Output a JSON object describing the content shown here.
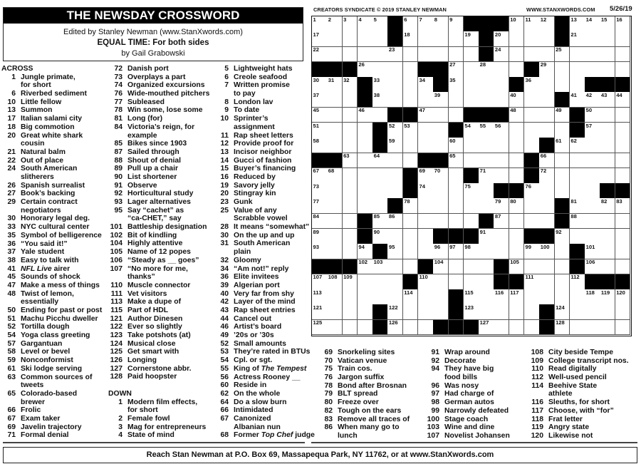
{
  "header": {
    "title": "THE NEWSDAY CROSSWORD",
    "editor": "Edited by Stanley Newman (www.StanXwords.com)",
    "puzzle_title": "EQUAL TIME: For both sides",
    "author": "by Gail Grabowski"
  },
  "top_bar": {
    "copyright": "CREATORS SYNDICATE © 2019 STANLEY NEWMAN",
    "website": "WWW.STANXWORDS.COM",
    "date": "5/26/19"
  },
  "grid": [
    ".....#....###...#....",
    ".....#.....#....#....",
    "...........#.........",
    "###....##.....#......",
    "...#....#....#....###",
    "...#............#....",
    ".....##...###....#...",
    "....#....#.......#...",
    "....#..........#.....",
    "##.....##.....#......",
    "......#...#...#......",
    "......#.....##.....##",
    ".....#..........#....",
    "...#.......#....#....",
    "...#....###...##.....",
    "....#............#...",
    "###....#....#....#...",
    "......#.....##....###",
    ".........#...........",
    "....#....#.....#.....",
    "....#...###....#....."
  ],
  "clues": {
    "across_heading": "ACROSS",
    "down_heading": "DOWN",
    "across": [
      {
        "n": "1",
        "lines": [
          "Jungle primate,",
          "for short"
        ]
      },
      {
        "n": "6",
        "lines": [
          "Riverbed sediment"
        ]
      },
      {
        "n": "10",
        "lines": [
          "Little fellow"
        ]
      },
      {
        "n": "13",
        "lines": [
          "Summon"
        ]
      },
      {
        "n": "17",
        "lines": [
          "Italian salami city"
        ]
      },
      {
        "n": "18",
        "lines": [
          "Big commotion"
        ]
      },
      {
        "n": "20",
        "lines": [
          "Great white shark",
          "cousin"
        ]
      },
      {
        "n": "21",
        "lines": [
          "Natural balm"
        ]
      },
      {
        "n": "22",
        "lines": [
          "Out of place"
        ]
      },
      {
        "n": "24",
        "lines": [
          "South American",
          "slitherers"
        ]
      },
      {
        "n": "26",
        "lines": [
          "Spanish surrealist"
        ]
      },
      {
        "n": "27",
        "lines": [
          "Book’s backing"
        ]
      },
      {
        "n": "29",
        "lines": [
          "Certain contract",
          "negotiators"
        ]
      },
      {
        "n": "30",
        "lines": [
          "Honorary legal deg."
        ]
      },
      {
        "n": "33",
        "lines": [
          "NYC cultural center"
        ]
      },
      {
        "n": "35",
        "lines": [
          "Symbol of belligerence"
        ]
      },
      {
        "n": "36",
        "lines": [
          "“You said it!”"
        ]
      },
      {
        "n": "37",
        "lines": [
          "Yale student"
        ]
      },
      {
        "n": "38",
        "lines": [
          "Easy to talk with"
        ]
      },
      {
        "n": "41",
        "lines": [
          "NFL Live airer"
        ],
        "italic": "NFL Live"
      },
      {
        "n": "45",
        "lines": [
          "Sounds of shock"
        ]
      },
      {
        "n": "47",
        "lines": [
          "Make a mess of things"
        ]
      },
      {
        "n": "48",
        "lines": [
          "Twist of lemon,",
          "essentially"
        ]
      },
      {
        "n": "50",
        "lines": [
          "Ending for past or post"
        ]
      },
      {
        "n": "51",
        "lines": [
          "Machu Picchu dweller"
        ]
      },
      {
        "n": "52",
        "lines": [
          "Tortilla dough"
        ]
      },
      {
        "n": "54",
        "lines": [
          "Yoga class greeting"
        ]
      },
      {
        "n": "57",
        "lines": [
          "Gargantuan"
        ]
      },
      {
        "n": "58",
        "lines": [
          "Level or bevel"
        ]
      },
      {
        "n": "59",
        "lines": [
          "Nonconformist"
        ]
      },
      {
        "n": "61",
        "lines": [
          "Ski lodge serving"
        ]
      },
      {
        "n": "63",
        "lines": [
          "Common sources of",
          "tweets"
        ]
      },
      {
        "n": "65",
        "lines": [
          "Colorado-based",
          "brewer"
        ]
      },
      {
        "n": "66",
        "lines": [
          "Frolic"
        ]
      },
      {
        "n": "67",
        "lines": [
          "Exam taker"
        ]
      },
      {
        "n": "69",
        "lines": [
          "Javelin trajectory"
        ]
      },
      {
        "n": "71",
        "lines": [
          "Formal denial"
        ]
      },
      {
        "n": "72",
        "lines": [
          "Danish port"
        ]
      },
      {
        "n": "73",
        "lines": [
          "Overplays a part"
        ]
      },
      {
        "n": "74",
        "lines": [
          "Organized excursions"
        ]
      },
      {
        "n": "76",
        "lines": [
          "Wide-mouthed pitchers"
        ]
      },
      {
        "n": "77",
        "lines": [
          "Subleased"
        ]
      },
      {
        "n": "78",
        "lines": [
          "Win some, lose some"
        ]
      },
      {
        "n": "81",
        "lines": [
          "Long (for)"
        ]
      },
      {
        "n": "84",
        "lines": [
          "Victoria’s reign, for",
          "example"
        ]
      },
      {
        "n": "85",
        "lines": [
          "Bikes since 1903"
        ]
      },
      {
        "n": "87",
        "lines": [
          "Sailed through"
        ]
      },
      {
        "n": "88",
        "lines": [
          "Shout of denial"
        ]
      },
      {
        "n": "89",
        "lines": [
          "Pull up a chair"
        ]
      },
      {
        "n": "90",
        "lines": [
          "List shortener"
        ]
      },
      {
        "n": "91",
        "lines": [
          "Observe"
        ]
      },
      {
        "n": "92",
        "lines": [
          "Horticultural study"
        ]
      },
      {
        "n": "93",
        "lines": [
          "Lager alternatives"
        ]
      },
      {
        "n": "95",
        "lines": [
          "Say “cachet” as",
          "“ca-CHET,” say"
        ]
      },
      {
        "n": "101",
        "lines": [
          "Battleship designation"
        ]
      },
      {
        "n": "102",
        "lines": [
          "Bit of kindling"
        ]
      },
      {
        "n": "104",
        "lines": [
          "Highly attentive"
        ]
      },
      {
        "n": "105",
        "lines": [
          "Name of 12 popes"
        ]
      },
      {
        "n": "106",
        "lines": [
          "“Steady as __ goes”"
        ]
      },
      {
        "n": "107",
        "lines": [
          "“No more for me,",
          "thanks”"
        ]
      },
      {
        "n": "110",
        "lines": [
          "Muscle connector"
        ]
      },
      {
        "n": "111",
        "lines": [
          "Vet visitors"
        ]
      },
      {
        "n": "113",
        "lines": [
          "Make a dupe of"
        ]
      },
      {
        "n": "115",
        "lines": [
          "Part of HDL"
        ]
      },
      {
        "n": "121",
        "lines": [
          "Author Dinesen"
        ]
      },
      {
        "n": "122",
        "lines": [
          "Ever so slightly"
        ]
      },
      {
        "n": "123",
        "lines": [
          "Take potshots (at)"
        ]
      },
      {
        "n": "124",
        "lines": [
          "Musical close"
        ]
      },
      {
        "n": "125",
        "lines": [
          "Get smart with"
        ]
      },
      {
        "n": "126",
        "lines": [
          "Longing"
        ]
      },
      {
        "n": "127",
        "lines": [
          "Cornerstone abbr."
        ]
      },
      {
        "n": "128",
        "lines": [
          "Paid hoopster"
        ]
      }
    ],
    "down": [
      {
        "n": "1",
        "lines": [
          "Modern film effects,",
          "for short"
        ]
      },
      {
        "n": "2",
        "lines": [
          "Female fowl"
        ]
      },
      {
        "n": "3",
        "lines": [
          "Mag for entrepreneurs"
        ]
      },
      {
        "n": "4",
        "lines": [
          "State of mind"
        ]
      },
      {
        "n": "5",
        "lines": [
          "Lightweight hats"
        ]
      },
      {
        "n": "6",
        "lines": [
          "Creole seafood"
        ]
      },
      {
        "n": "7",
        "lines": [
          "Written promise",
          "to pay"
        ]
      },
      {
        "n": "8",
        "lines": [
          "London lav"
        ]
      },
      {
        "n": "9",
        "lines": [
          "To date"
        ]
      },
      {
        "n": "10",
        "lines": [
          "Sprinter’s",
          "assignment"
        ]
      },
      {
        "n": "11",
        "lines": [
          "Rap sheet letters"
        ]
      },
      {
        "n": "12",
        "lines": [
          "Provide proof for"
        ]
      },
      {
        "n": "13",
        "lines": [
          "Incisor neighbor"
        ]
      },
      {
        "n": "14",
        "lines": [
          "Gucci of fashion"
        ]
      },
      {
        "n": "15",
        "lines": [
          "Buyer’s financing"
        ]
      },
      {
        "n": "16",
        "lines": [
          "Reduced by"
        ]
      },
      {
        "n": "19",
        "lines": [
          "Savory jelly"
        ]
      },
      {
        "n": "20",
        "lines": [
          "Stingray kin"
        ]
      },
      {
        "n": "23",
        "lines": [
          "Gunk"
        ]
      },
      {
        "n": "25",
        "lines": [
          "Value of any",
          "Scrabble vowel"
        ]
      },
      {
        "n": "28",
        "lines": [
          "It means “somewhat”"
        ]
      },
      {
        "n": "30",
        "lines": [
          "On the up and up"
        ]
      },
      {
        "n": "31",
        "lines": [
          "South American",
          "plain"
        ]
      },
      {
        "n": "32",
        "lines": [
          "Gloomy"
        ]
      },
      {
        "n": "34",
        "lines": [
          "“Am not!” reply"
        ]
      },
      {
        "n": "36",
        "lines": [
          "Elite invitees"
        ]
      },
      {
        "n": "39",
        "lines": [
          "Algerian port"
        ]
      },
      {
        "n": "40",
        "lines": [
          "Very far from shy"
        ]
      },
      {
        "n": "42",
        "lines": [
          "Layer of the mind"
        ]
      },
      {
        "n": "43",
        "lines": [
          "Rap sheet entries"
        ]
      },
      {
        "n": "44",
        "lines": [
          "Cancel out"
        ]
      },
      {
        "n": "46",
        "lines": [
          "Artist’s board"
        ]
      },
      {
        "n": "49",
        "lines": [
          "’20s or ’30s"
        ]
      },
      {
        "n": "52",
        "lines": [
          "Small amounts"
        ]
      },
      {
        "n": "53",
        "lines": [
          "They’re rated in BTUs"
        ]
      },
      {
        "n": "54",
        "lines": [
          "Cpl. or sgt."
        ]
      },
      {
        "n": "55",
        "lines": [
          "King of The Tempest"
        ],
        "italic": "The Tempest"
      },
      {
        "n": "56",
        "lines": [
          "Actress Rooney __"
        ]
      },
      {
        "n": "60",
        "lines": [
          "Reside in"
        ]
      },
      {
        "n": "62",
        "lines": [
          "On the whole"
        ]
      },
      {
        "n": "64",
        "lines": [
          "Do a slow burn"
        ]
      },
      {
        "n": "66",
        "lines": [
          "Intimidated"
        ]
      },
      {
        "n": "67",
        "lines": [
          "Canonized",
          "Albanian nun"
        ]
      },
      {
        "n": "68",
        "lines": [
          "Former Top Chef judge"
        ],
        "italic": "Top Chef"
      },
      {
        "n": "69",
        "lines": [
          "Snorkeling sites"
        ]
      },
      {
        "n": "70",
        "lines": [
          "Vatican venue"
        ]
      },
      {
        "n": "75",
        "lines": [
          "Train cos."
        ]
      },
      {
        "n": "76",
        "lines": [
          "Jargon suffix"
        ]
      },
      {
        "n": "78",
        "lines": [
          "Bond after Brosnan"
        ]
      },
      {
        "n": "79",
        "lines": [
          "BLT spread"
        ]
      },
      {
        "n": "80",
        "lines": [
          "Freeze over"
        ]
      },
      {
        "n": "82",
        "lines": [
          "Tough on the ears"
        ]
      },
      {
        "n": "83",
        "lines": [
          "Remove all traces of"
        ]
      },
      {
        "n": "86",
        "lines": [
          "When many go to",
          "lunch"
        ]
      },
      {
        "n": "91",
        "lines": [
          "Wrap around"
        ]
      },
      {
        "n": "92",
        "lines": [
          "Decorate"
        ]
      },
      {
        "n": "94",
        "lines": [
          "They have big",
          "food bills"
        ]
      },
      {
        "n": "96",
        "lines": [
          "Was nosy"
        ]
      },
      {
        "n": "97",
        "lines": [
          "Had charge of"
        ]
      },
      {
        "n": "98",
        "lines": [
          "German autos"
        ]
      },
      {
        "n": "99",
        "lines": [
          "Narrowly defeated"
        ]
      },
      {
        "n": "100",
        "lines": [
          "Stage coach"
        ]
      },
      {
        "n": "103",
        "lines": [
          "Wine and dine"
        ]
      },
      {
        "n": "107",
        "lines": [
          "Novelist Johansen"
        ]
      },
      {
        "n": "108",
        "lines": [
          "City beside Tempe"
        ]
      },
      {
        "n": "109",
        "lines": [
          "College transcript nos."
        ]
      },
      {
        "n": "110",
        "lines": [
          "Read digitally"
        ]
      },
      {
        "n": "112",
        "lines": [
          "Well-used pencil"
        ]
      },
      {
        "n": "114",
        "lines": [
          "Beehive State",
          "athlete"
        ]
      },
      {
        "n": "116",
        "lines": [
          "Sleuths, for short"
        ]
      },
      {
        "n": "117",
        "lines": [
          "Choose, with “for”"
        ]
      },
      {
        "n": "118",
        "lines": [
          "Frat letter"
        ]
      },
      {
        "n": "119",
        "lines": [
          "Angry state"
        ]
      },
      {
        "n": "120",
        "lines": [
          "Likewise not"
        ]
      }
    ]
  },
  "footer": "Reach Stan Newman at P.O. Box 69, Massapequa Park, NY 11762, or at www.StanXwords.com"
}
